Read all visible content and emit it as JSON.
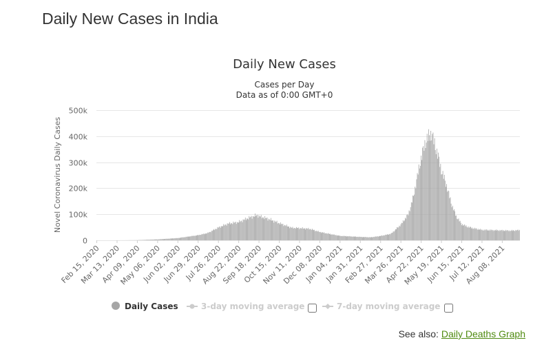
{
  "page": {
    "title": "Daily New Cases in India"
  },
  "see_also": {
    "label": "See also:",
    "link_text": "Daily Deaths Graph"
  },
  "legend": {
    "items": [
      {
        "label": "Daily Cases",
        "active": true
      },
      {
        "label": "3-day moving average",
        "active": false
      },
      {
        "label": "7-day moving average",
        "active": false
      }
    ]
  },
  "colors": {
    "bar": "#a6a6a6",
    "grid": "#e6e6e6",
    "text": "#333333",
    "axis_text": "#666666",
    "inactive": "#cccccc",
    "link": "#4f8a10"
  },
  "chart_data": {
    "type": "bar",
    "title": "Daily New Cases",
    "subtitle_lines": [
      "Cases per Day",
      "Data as of 0:00 GMT+0"
    ],
    "ylabel": "Novel Coronavirus Daily Cases",
    "xlabel": "",
    "ylim": [
      0,
      500000
    ],
    "y_ticks": [
      {
        "value": 0,
        "label": "0"
      },
      {
        "value": 100000,
        "label": "100k"
      },
      {
        "value": 200000,
        "label": "200k"
      },
      {
        "value": 300000,
        "label": "300k"
      },
      {
        "value": 400000,
        "label": "400k"
      },
      {
        "value": 500000,
        "label": "500k"
      }
    ],
    "x_range": [
      "2020-02-15",
      "2021-08-31"
    ],
    "x_ticks": [
      "Feb 15, 2020",
      "Mar 13, 2020",
      "Apr 09, 2020",
      "May 06, 2020",
      "Jun 02, 2020",
      "Jun 29, 2020",
      "Jul 26, 2020",
      "Aug 22, 2020",
      "Sep 18, 2020",
      "Oct 15, 2020",
      "Nov 11, 2020",
      "Dec 08, 2020",
      "Jan 04, 2021",
      "Jan 31, 2021",
      "Feb 27, 2021",
      "Mar 26, 2021",
      "Apr 22, 2021",
      "May 19, 2021",
      "Jun 15, 2021",
      "Jul 12, 2021",
      "Aug 08, 2021"
    ],
    "grid": true,
    "legend_position": "bottom",
    "series": [
      {
        "name": "Daily Cases",
        "points": [
          [
            "2020-02-15",
            0
          ],
          [
            "2020-03-13",
            20
          ],
          [
            "2020-04-09",
            600
          ],
          [
            "2020-05-06",
            3500
          ],
          [
            "2020-06-02",
            8500
          ],
          [
            "2020-06-29",
            19500
          ],
          [
            "2020-07-12",
            28000
          ],
          [
            "2020-07-26",
            49000
          ],
          [
            "2020-08-08",
            64000
          ],
          [
            "2020-08-22",
            70000
          ],
          [
            "2020-09-05",
            87000
          ],
          [
            "2020-09-16",
            97000
          ],
          [
            "2020-09-18",
            93000
          ],
          [
            "2020-10-01",
            82000
          ],
          [
            "2020-10-15",
            66000
          ],
          [
            "2020-11-01",
            48000
          ],
          [
            "2020-11-11",
            47000
          ],
          [
            "2020-11-25",
            44000
          ],
          [
            "2020-12-08",
            32000
          ],
          [
            "2020-12-22",
            24000
          ],
          [
            "2021-01-04",
            17000
          ],
          [
            "2021-01-31",
            13000
          ],
          [
            "2021-02-14",
            11500
          ],
          [
            "2021-02-27",
            16500
          ],
          [
            "2021-03-13",
            25000
          ],
          [
            "2021-03-26",
            60000
          ],
          [
            "2021-04-05",
            100000
          ],
          [
            "2021-04-12",
            170000
          ],
          [
            "2021-04-18",
            260000
          ],
          [
            "2021-04-22",
            315000
          ],
          [
            "2021-04-28",
            380000
          ],
          [
            "2021-05-01",
            395000
          ],
          [
            "2021-05-06",
            412000
          ],
          [
            "2021-05-10",
            370000
          ],
          [
            "2021-05-15",
            320000
          ],
          [
            "2021-05-19",
            270000
          ],
          [
            "2021-05-26",
            210000
          ],
          [
            "2021-06-02",
            135000
          ],
          [
            "2021-06-08",
            92000
          ],
          [
            "2021-06-15",
            62000
          ],
          [
            "2021-06-24",
            51000
          ],
          [
            "2021-07-01",
            46000
          ],
          [
            "2021-07-12",
            40000
          ],
          [
            "2021-07-25",
            39000
          ],
          [
            "2021-08-08",
            38000
          ],
          [
            "2021-08-20",
            37000
          ],
          [
            "2021-08-31",
            39000
          ]
        ]
      }
    ]
  }
}
